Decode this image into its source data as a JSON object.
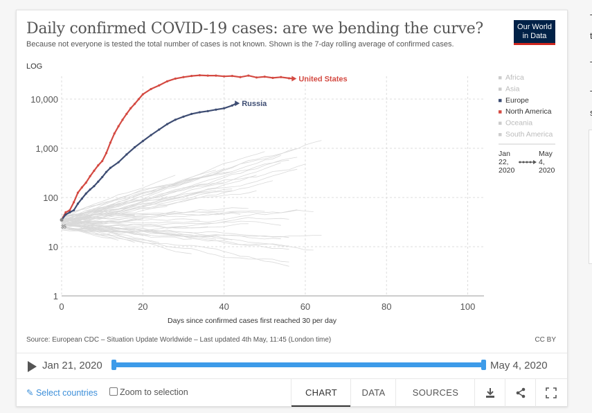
{
  "header": {
    "title": "Daily confirmed COVID-19 cases: are we bending the curve?",
    "subtitle": "Because not everyone is tested the total number of cases is not known. Shown is the 7-day rolling average of confirmed cases.",
    "logo_line1": "Our World",
    "logo_line2": "in Data"
  },
  "chart_data": {
    "type": "line",
    "title": "Daily confirmed COVID-19 cases: are we bending the curve?",
    "xlabel": "Days since confirmed cases first reached 30 per day",
    "ylabel": "LOG",
    "yscale": "log",
    "xlim": [
      0,
      104
    ],
    "ylim": [
      1,
      35000
    ],
    "x_ticks": [
      "0",
      "20",
      "40",
      "60",
      "80",
      "100"
    ],
    "x_tick_values": [
      0,
      20,
      40,
      60,
      80,
      100
    ],
    "y_ticks": [
      "10,000",
      "1,000",
      "100",
      "10",
      "1"
    ],
    "y_tick_values": [
      10000,
      1000,
      100,
      10,
      1
    ],
    "grid": true,
    "legend_position": "right",
    "start_label": "35",
    "legend": [
      {
        "name": "Africa",
        "color": "#cccccc",
        "active": false
      },
      {
        "name": "Asia",
        "color": "#cccccc",
        "active": false
      },
      {
        "name": "Europe",
        "color": "#3e4d73",
        "active": true
      },
      {
        "name": "North America",
        "color": "#d44a42",
        "active": true
      },
      {
        "name": "Oceania",
        "color": "#cccccc",
        "active": false
      },
      {
        "name": "South America",
        "color": "#cccccc",
        "active": false
      }
    ],
    "series": [
      {
        "name": "United States",
        "color": "#d44a42",
        "x": [
          0,
          1,
          2,
          3,
          4,
          5,
          6,
          7,
          8,
          9,
          10,
          11,
          12,
          13,
          14,
          15,
          16,
          17,
          18,
          19,
          20,
          22,
          24,
          26,
          28,
          30,
          32,
          34,
          36,
          38,
          40,
          42,
          44,
          46,
          48,
          50,
          52,
          54,
          56,
          57
        ],
        "y": [
          35,
          50,
          55,
          80,
          125,
          160,
          200,
          270,
          350,
          450,
          550,
          800,
          1300,
          2000,
          2800,
          3800,
          5000,
          6500,
          8000,
          10000,
          12500,
          16000,
          19000,
          23000,
          26000,
          28000,
          29500,
          30500,
          30000,
          30000,
          29000,
          29500,
          28000,
          30000,
          27500,
          28500,
          27000,
          28000,
          26500,
          26000
        ]
      },
      {
        "name": "Russia",
        "color": "#3e4d73",
        "x": [
          0,
          1,
          2,
          3,
          4,
          5,
          6,
          7,
          8,
          9,
          10,
          11,
          12,
          14,
          16,
          18,
          20,
          22,
          24,
          26,
          28,
          30,
          32,
          34,
          36,
          38,
          40,
          42,
          43
        ],
        "y": [
          35,
          45,
          50,
          55,
          75,
          95,
          120,
          145,
          170,
          210,
          260,
          330,
          400,
          520,
          750,
          1050,
          1400,
          1850,
          2400,
          3100,
          3800,
          4400,
          5000,
          5400,
          5700,
          6100,
          6500,
          7400,
          8200
        ]
      }
    ]
  },
  "axis": {
    "log_label": "LOG",
    "xlabel": "Days since confirmed cases first reached 30 per day",
    "x_ticks": [
      "0",
      "20",
      "40",
      "60",
      "80",
      "100"
    ],
    "y_ticks": [
      "10,000",
      "1,000",
      "100",
      "10",
      "1"
    ]
  },
  "legend_timeline": {
    "start": [
      "Jan",
      "22,",
      "2020"
    ],
    "end": [
      "May",
      "4,",
      "2020"
    ]
  },
  "footer": {
    "source": "Source: European CDC – Situation Update Worldwide – Last updated 4th May, 11:45 (London time)",
    "license": "CC BY"
  },
  "timeline": {
    "start_date": "Jan 21, 2020",
    "end_date": "May 4, 2020"
  },
  "controls": {
    "select_countries": "Select countries",
    "zoom": "Zoom to selection",
    "tabs": [
      "CHART",
      "DATA",
      "SOURCES"
    ]
  },
  "side_fragments": [
    "T",
    "t",
    "T",
    "T",
    "s"
  ]
}
